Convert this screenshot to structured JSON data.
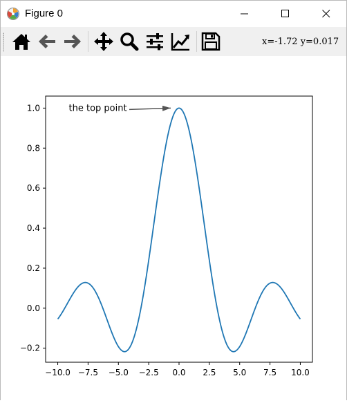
{
  "window": {
    "title": "Figure 0",
    "icons": {
      "app": "matplotlib-logo-icon",
      "minimize": "minimize-icon",
      "maximize": "maximize-icon",
      "close": "close-icon"
    }
  },
  "toolbar": {
    "buttons": [
      {
        "name": "home",
        "icon": "home-icon"
      },
      {
        "name": "back",
        "icon": "arrow-left-icon"
      },
      {
        "name": "forward",
        "icon": "arrow-right-icon"
      },
      {
        "name": "pan",
        "icon": "move-icon"
      },
      {
        "name": "zoom",
        "icon": "zoom-icon"
      },
      {
        "name": "subplots",
        "icon": "sliders-icon"
      },
      {
        "name": "edit-axis",
        "icon": "line-chart-icon"
      },
      {
        "name": "save",
        "icon": "save-icon"
      }
    ],
    "coords": "x=-1.72 y=0.017"
  },
  "chart_data": {
    "type": "line",
    "title": "",
    "xlabel": "",
    "ylabel": "",
    "xlim": [
      -11,
      11
    ],
    "ylim": [
      -0.27,
      1.06
    ],
    "xticks": [
      -10,
      -7.5,
      -5,
      -2.5,
      0,
      2.5,
      5,
      7.5,
      10
    ],
    "xtick_labels": [
      "−10.0",
      "−7.5",
      "−5.0",
      "−2.5",
      "0.0",
      "2.5",
      "5.0",
      "7.5",
      "10.0"
    ],
    "yticks": [
      -0.2,
      0,
      0.2,
      0.4,
      0.6,
      0.8,
      1.0
    ],
    "ytick_labels": [
      "−0.2",
      "0.0",
      "0.2",
      "0.4",
      "0.6",
      "0.8",
      "1.0"
    ],
    "grid": false,
    "series": [
      {
        "color": "#1f77b4",
        "function": "sinc",
        "x_range": [
          -10,
          10
        ],
        "peak": [
          0,
          1.0
        ]
      }
    ],
    "annotation": {
      "text": "the top point",
      "xy": [
        0,
        1.0
      ],
      "xytext": [
        -10,
        1.0
      ]
    }
  }
}
